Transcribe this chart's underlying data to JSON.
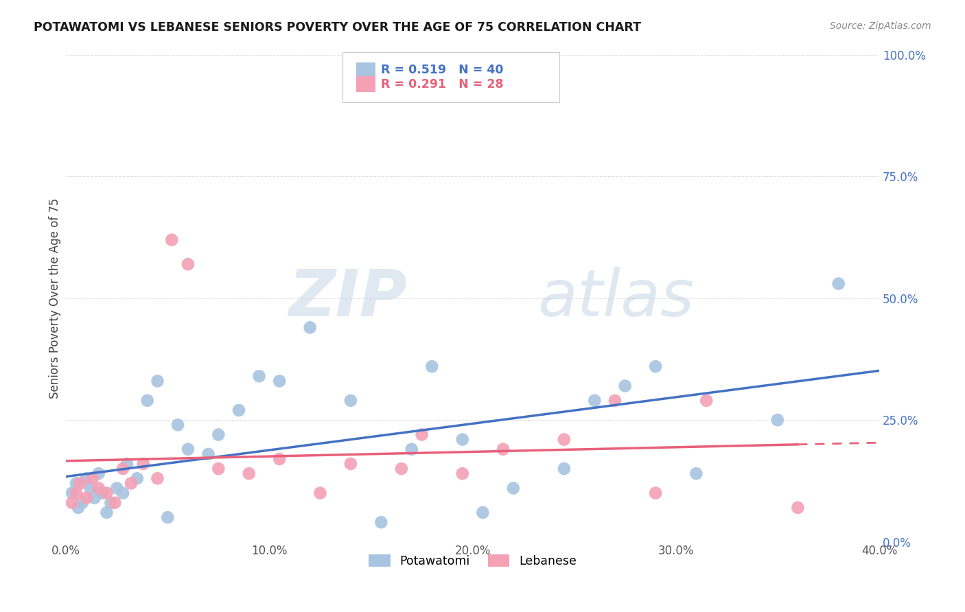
{
  "title": "POTAWATOMI VS LEBANESE SENIORS POVERTY OVER THE AGE OF 75 CORRELATION CHART",
  "source": "Source: ZipAtlas.com",
  "xlabel_ticks": [
    "0.0%",
    "10.0%",
    "20.0%",
    "30.0%",
    "40.0%"
  ],
  "xlabel_tick_vals": [
    0,
    10,
    20,
    30,
    40
  ],
  "ylabel": "Seniors Poverty Over the Age of 75",
  "ylabel_ticks": [
    "0.0%",
    "25.0%",
    "50.0%",
    "75.0%",
    "100.0%"
  ],
  "ylabel_tick_vals": [
    0,
    25,
    50,
    75,
    100
  ],
  "xlim": [
    0,
    40
  ],
  "ylim": [
    0,
    100
  ],
  "potawatomi_R": 0.519,
  "potawatomi_N": 40,
  "lebanese_R": 0.291,
  "lebanese_N": 28,
  "potawatomi_color": "#a8c4e0",
  "lebanese_color": "#f4a0b5",
  "trendline_potawatomi_color": "#4472c4",
  "trendline_lebanese_color": "#e8607a",
  "potawatomi_x": [
    0.3,
    0.5,
    0.6,
    0.8,
    1.0,
    1.2,
    1.4,
    1.6,
    1.8,
    2.0,
    2.2,
    2.5,
    2.8,
    3.0,
    3.5,
    4.0,
    4.5,
    5.0,
    5.5,
    6.0,
    7.0,
    7.5,
    8.5,
    9.5,
    10.5,
    12.0,
    14.0,
    15.5,
    17.0,
    18.0,
    19.5,
    20.5,
    22.0,
    24.5,
    26.0,
    27.5,
    29.0,
    31.0,
    35.0,
    38.0
  ],
  "potawatomi_y": [
    10,
    12,
    7,
    8,
    13,
    11,
    9,
    14,
    10,
    6,
    8,
    11,
    10,
    16,
    13,
    29,
    33,
    5,
    24,
    19,
    18,
    22,
    27,
    34,
    33,
    44,
    29,
    4,
    19,
    36,
    21,
    6,
    11,
    15,
    29,
    32,
    36,
    14,
    25,
    53
  ],
  "lebanese_x": [
    0.3,
    0.5,
    0.7,
    1.0,
    1.3,
    1.6,
    2.0,
    2.4,
    2.8,
    3.2,
    3.8,
    4.5,
    5.2,
    6.0,
    7.5,
    9.0,
    10.5,
    12.5,
    14.0,
    16.5,
    17.5,
    19.5,
    21.5,
    24.5,
    27.0,
    29.0,
    31.5,
    36.0
  ],
  "lebanese_y": [
    8,
    10,
    12,
    9,
    13,
    11,
    10,
    8,
    15,
    12,
    16,
    13,
    62,
    57,
    15,
    14,
    17,
    10,
    16,
    15,
    22,
    14,
    19,
    21,
    29,
    10,
    29,
    7
  ],
  "watermark_line1": "ZIP",
  "watermark_line2": "atlas",
  "watermark_color": "#d0dce8",
  "background_color": "#ffffff",
  "grid_color": "#dddddd",
  "legend_box_color": "#f0f0f0",
  "legend_border_color": "#cccccc"
}
